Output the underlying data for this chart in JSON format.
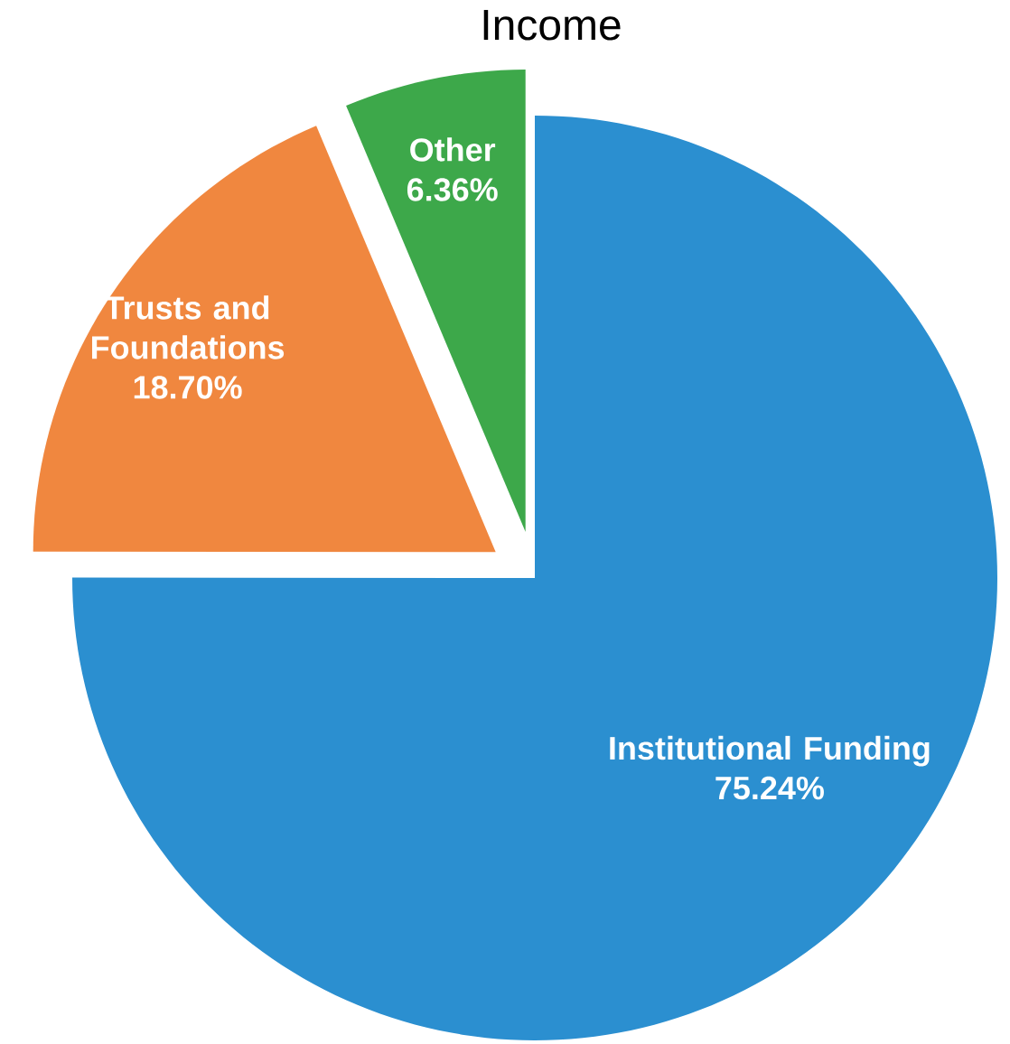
{
  "chart_data": {
    "type": "pie",
    "title": "Income",
    "categories": [
      "Institutional Funding",
      "Trusts and Foundations",
      "Other"
    ],
    "values": [
      75.24,
      18.7,
      6.36
    ],
    "value_labels": [
      "75.24%",
      "18.70%",
      "6.36%"
    ],
    "colors": [
      "#2b8fd0",
      "#f0873f",
      "#3da84a"
    ]
  }
}
